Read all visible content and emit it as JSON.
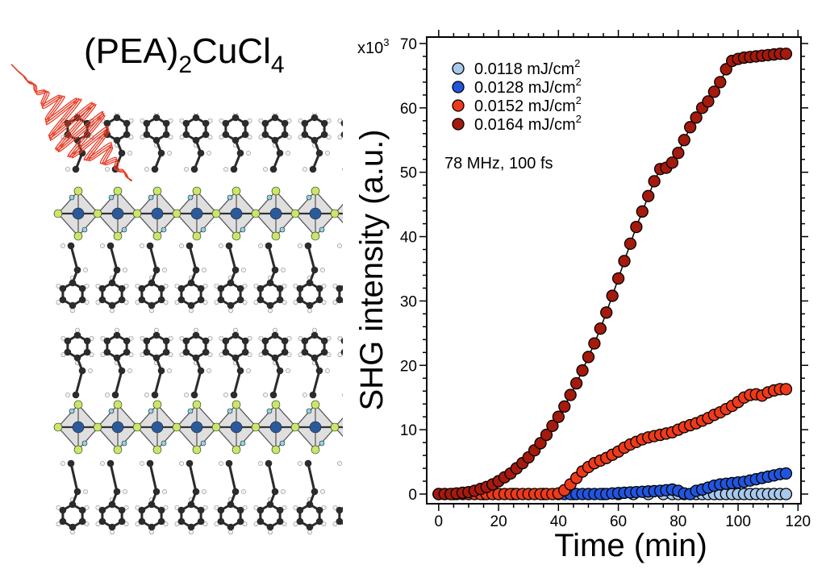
{
  "figure": {
    "structure_label": {
      "prefix": "(PEA)",
      "sub1": "2",
      "middle": "CuCl",
      "sub2": "4"
    }
  },
  "chart_data": {
    "type": "scatter",
    "xlabel": "Time (min)",
    "ylabel": "SHG intensity (a.u.)",
    "xlim": [
      -4,
      121
    ],
    "ylim": [
      -1500,
      71000
    ],
    "xticks": [
      0,
      20,
      40,
      60,
      80,
      100,
      120
    ],
    "yticks": [
      0,
      10000,
      20000,
      30000,
      40000,
      50000,
      60000,
      70000
    ],
    "ytick_labels": [
      "0",
      "10",
      "20",
      "30",
      "40",
      "50",
      "60",
      "70"
    ],
    "y_multiplier_prefix": "x10",
    "y_multiplier_exp": "3",
    "annotation": "78 MHz, 100 fs",
    "legend_position": "top-left",
    "series": [
      {
        "name": "0.0118 mJ/cm",
        "unit_sup": "2",
        "color": "#a8c8ec",
        "connected": false,
        "x": [
          0,
          5,
          10,
          15,
          20,
          25,
          30,
          35,
          40,
          45,
          50,
          55,
          60,
          65,
          70,
          75,
          78,
          80,
          82,
          84,
          86,
          88,
          90,
          92,
          94,
          96,
          98,
          100,
          102,
          104,
          106,
          108,
          110,
          112,
          114,
          116
        ],
        "y": [
          0,
          0,
          0,
          0,
          0,
          0,
          0,
          0,
          0,
          0,
          0,
          0,
          0,
          0,
          0,
          0,
          0,
          0,
          0,
          0,
          0,
          0,
          0,
          0,
          0,
          0,
          0,
          0,
          0,
          0,
          0,
          0,
          0,
          0,
          0,
          0
        ]
      },
      {
        "name": "0.0128 mJ/cm",
        "unit_sup": "2",
        "color": "#2255dd",
        "connected": false,
        "x": [
          42,
          44,
          46,
          48,
          50,
          52,
          54,
          56,
          58,
          60,
          62,
          64,
          66,
          68,
          70,
          72,
          74,
          76,
          78,
          80,
          82,
          84,
          86,
          88,
          90,
          92,
          94,
          96,
          98,
          100,
          102,
          104,
          106,
          108,
          110,
          112,
          114,
          116
        ],
        "y": [
          0,
          0,
          0,
          0,
          0,
          0,
          0,
          0,
          100,
          150,
          200,
          250,
          300,
          350,
          400,
          450,
          500,
          600,
          700,
          500,
          100,
          0,
          500,
          700,
          1000,
          1300,
          1500,
          1600,
          1700,
          1800,
          1900,
          2100,
          2300,
          2500,
          2700,
          2900,
          3100,
          3200
        ]
      },
      {
        "name": "0.0152 mJ/cm",
        "unit_sup": "2",
        "color": "#ee3a1a",
        "connected": false,
        "x": [
          0,
          2,
          4,
          6,
          8,
          10,
          12,
          14,
          16,
          18,
          20,
          22,
          24,
          26,
          28,
          30,
          32,
          34,
          36,
          38,
          40,
          42,
          44,
          46,
          48,
          50,
          52,
          54,
          56,
          58,
          60,
          62,
          64,
          66,
          68,
          70,
          72,
          74,
          76,
          78,
          80,
          82,
          84,
          86,
          88,
          90,
          92,
          94,
          96,
          98,
          100,
          102,
          104,
          106,
          108,
          110,
          112,
          114,
          116
        ],
        "y": [
          0,
          0,
          0,
          0,
          0,
          0,
          0,
          0,
          0,
          0,
          0,
          0,
          0,
          0,
          0,
          0,
          0,
          0,
          0,
          0,
          100,
          600,
          1500,
          2500,
          3500,
          4200,
          4800,
          5200,
          5600,
          6100,
          6600,
          7200,
          7700,
          8100,
          8500,
          8800,
          9000,
          9200,
          9400,
          9600,
          10000,
          10400,
          10700,
          11000,
          11400,
          11800,
          12300,
          12700,
          13200,
          13700,
          14300,
          15000,
          15400,
          15500,
          15300,
          15800,
          16100,
          16300,
          16300
        ]
      },
      {
        "name": "0.0164 mJ/cm",
        "unit_sup": "2",
        "color": "#a41a0c",
        "connected": true,
        "x": [
          0,
          2,
          4,
          6,
          8,
          10,
          12,
          14,
          16,
          18,
          20,
          22,
          24,
          26,
          28,
          30,
          32,
          34,
          36,
          38,
          40,
          42,
          44,
          46,
          48,
          50,
          52,
          54,
          56,
          58,
          60,
          62,
          64,
          66,
          68,
          70,
          72,
          74,
          76,
          78,
          80,
          82,
          84,
          86,
          88,
          90,
          92,
          94,
          96,
          98,
          100,
          102,
          104,
          106,
          108,
          110,
          112,
          114,
          116
        ],
        "y": [
          0,
          0,
          0,
          100,
          200,
          300,
          500,
          800,
          1100,
          1500,
          2000,
          2600,
          3200,
          4000,
          4800,
          5700,
          6800,
          7900,
          9200,
          10600,
          12000,
          13600,
          15400,
          17200,
          19200,
          21300,
          23400,
          25700,
          28200,
          30800,
          33500,
          36200,
          38900,
          41500,
          43900,
          46300,
          48600,
          50500,
          50700,
          51500,
          53000,
          55000,
          57000,
          58500,
          60000,
          61000,
          62500,
          64000,
          66000,
          67300,
          67600,
          67800,
          67900,
          68000,
          68100,
          68200,
          68300,
          68400,
          68400
        ]
      }
    ]
  }
}
